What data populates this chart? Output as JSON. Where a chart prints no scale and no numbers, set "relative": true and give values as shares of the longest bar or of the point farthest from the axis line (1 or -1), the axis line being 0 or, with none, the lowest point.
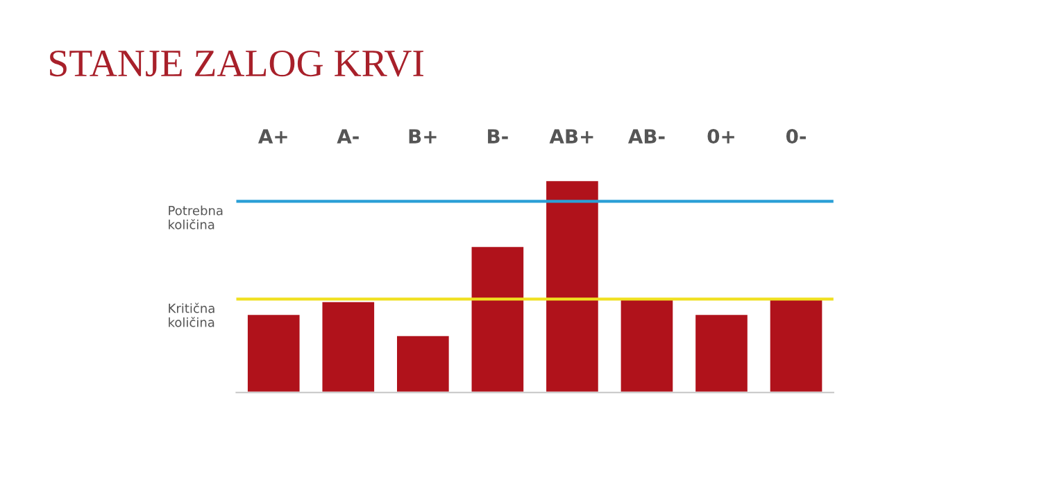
{
  "chart_data": {
    "type": "bar",
    "title": "STANJE ZALOG KRVI",
    "relative": true,
    "categories": [
      "A+",
      "A-",
      "B+",
      "B-",
      "AB+",
      "AB-",
      "0+",
      "0-"
    ],
    "values": [
      0.37,
      0.43,
      0.27,
      0.69,
      1,
      0.44,
      0.37,
      0.44
    ],
    "color": "#b0121b",
    "ref_lines": [
      {
        "axis": "y",
        "value": 0.9,
        "label": "Potrebna količina",
        "color": "#2a9fd6"
      },
      {
        "axis": "y",
        "value": 0.44,
        "label": "Kritična količina",
        "color": "#f0e020"
      }
    ],
    "grid": false,
    "legend": false
  }
}
